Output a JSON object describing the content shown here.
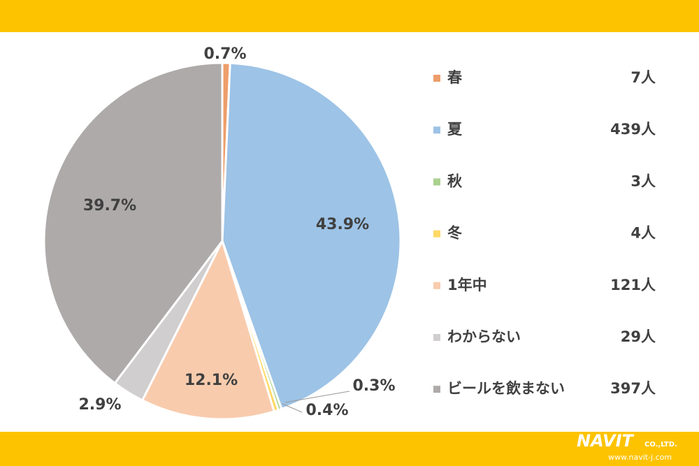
{
  "chart_data": {
    "type": "pie",
    "categories": [
      "春",
      "夏",
      "秋",
      "冬",
      "1年中",
      "わからない",
      "ビールを飲まない"
    ],
    "values": [
      0.7,
      43.9,
      0.3,
      0.4,
      12.1,
      2.9,
      39.7
    ],
    "value_labels": [
      "0.7%",
      "43.9%",
      "0.3%",
      "0.4%",
      "12.1%",
      "2.9%",
      "39.7%"
    ],
    "counts": [
      7,
      439,
      3,
      4,
      121,
      29,
      397
    ],
    "count_labels": [
      "7人",
      "439人",
      "3人",
      "4人",
      "121人",
      "29人",
      "397人"
    ],
    "colors": [
      "#ED9E6B",
      "#9DC3E6",
      "#A9D18E",
      "#FFD966",
      "#F8CBAD",
      "#D0CECE",
      "#AEAAAA"
    ],
    "legend": "right"
  },
  "logo": {
    "name": "NAVIT",
    "suffix": "CO.,LTD.",
    "url": "www.navit-j.com"
  }
}
